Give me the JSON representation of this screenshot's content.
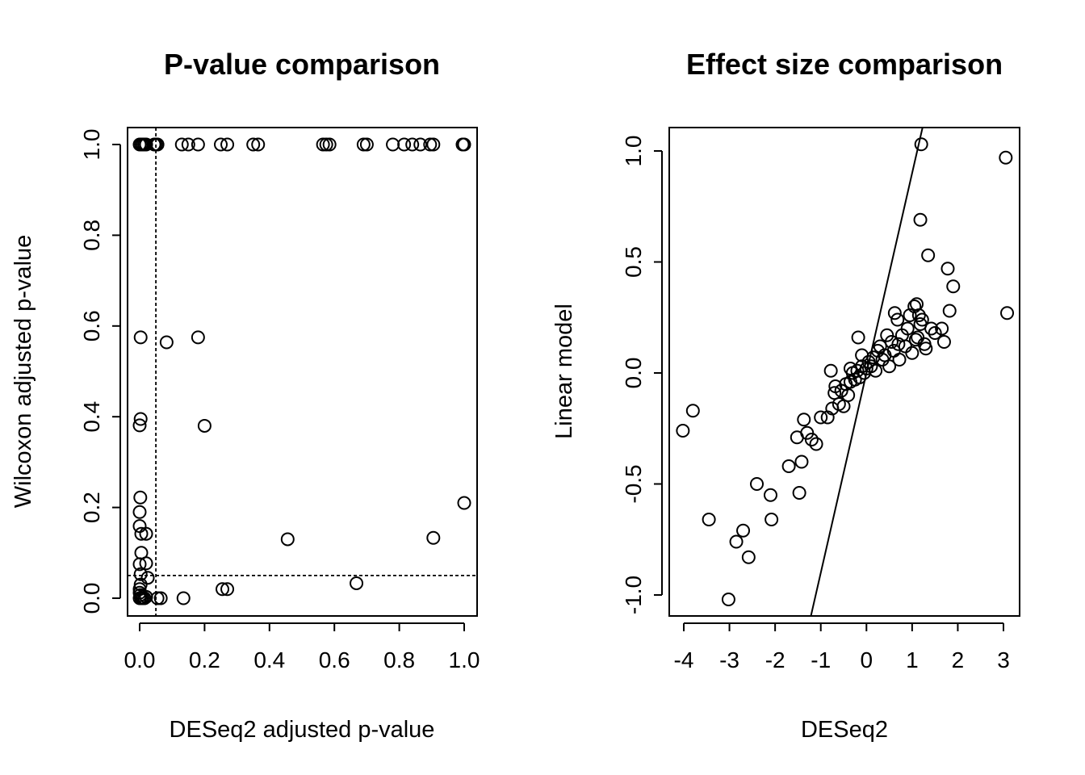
{
  "chart_data": [
    {
      "type": "scatter",
      "title": "P-value comparison",
      "xlabel": "DESeq2 adjusted p-value",
      "ylabel": "Wilcoxon adjusted p-value",
      "xlim": [
        0,
        1
      ],
      "ylim": [
        0,
        1
      ],
      "xticks": [
        0.0,
        0.2,
        0.4,
        0.6,
        0.8,
        1.0
      ],
      "yticks": [
        0.0,
        0.2,
        0.4,
        0.6,
        0.8,
        1.0
      ],
      "xtick_labels": [
        "0.0",
        "0.2",
        "0.4",
        "0.6",
        "0.8",
        "1.0"
      ],
      "ytick_labels": [
        "0.0",
        "0.2",
        "0.4",
        "0.6",
        "0.8",
        "1.0"
      ],
      "reference_lines": {
        "vertical_x": 0.05,
        "horizontal_y": 0.05,
        "style": "dashed"
      },
      "points": [
        [
          0.0,
          1.0
        ],
        [
          0.005,
          1.0
        ],
        [
          0.01,
          1.0
        ],
        [
          0.015,
          1.0
        ],
        [
          0.02,
          1.0
        ],
        [
          0.045,
          1.0
        ],
        [
          0.05,
          1.0
        ],
        [
          0.055,
          1.0
        ],
        [
          0.13,
          1.0
        ],
        [
          0.15,
          1.0
        ],
        [
          0.18,
          1.0
        ],
        [
          0.25,
          1.0
        ],
        [
          0.27,
          1.0
        ],
        [
          0.35,
          1.0
        ],
        [
          0.365,
          1.0
        ],
        [
          0.565,
          1.0
        ],
        [
          0.575,
          1.0
        ],
        [
          0.585,
          1.0
        ],
        [
          0.69,
          1.0
        ],
        [
          0.7,
          1.0
        ],
        [
          0.78,
          1.0
        ],
        [
          0.815,
          1.0
        ],
        [
          0.84,
          1.0
        ],
        [
          0.865,
          1.0
        ],
        [
          0.895,
          1.0
        ],
        [
          0.905,
          1.0
        ],
        [
          0.995,
          1.0
        ],
        [
          1.0,
          1.0
        ],
        [
          0.003,
          0.575
        ],
        [
          0.083,
          0.564
        ],
        [
          0.18,
          0.575
        ],
        [
          0.003,
          0.395
        ],
        [
          0.0,
          0.381
        ],
        [
          0.2,
          0.38
        ],
        [
          0.002,
          0.222
        ],
        [
          0.0,
          0.19
        ],
        [
          0.0,
          0.159
        ],
        [
          0.005,
          0.142
        ],
        [
          0.02,
          0.142
        ],
        [
          0.456,
          0.13
        ],
        [
          0.905,
          0.133
        ],
        [
          1.0,
          0.21
        ],
        [
          0.005,
          0.1
        ],
        [
          0.0,
          0.075
        ],
        [
          0.02,
          0.077
        ],
        [
          0.003,
          0.053
        ],
        [
          0.025,
          0.045
        ],
        [
          0.003,
          0.03
        ],
        [
          0.668,
          0.033
        ],
        [
          0.0,
          0.02
        ],
        [
          0.0,
          0.012
        ],
        [
          0.002,
          0.007
        ],
        [
          0.0,
          0.0
        ],
        [
          0.005,
          0.0
        ],
        [
          0.01,
          0.0
        ],
        [
          0.015,
          0.0
        ],
        [
          0.02,
          0.003
        ],
        [
          0.055,
          0.0
        ],
        [
          0.065,
          0.0
        ],
        [
          0.135,
          0.0
        ],
        [
          0.255,
          0.02
        ],
        [
          0.27,
          0.02
        ]
      ]
    },
    {
      "type": "scatter",
      "title": "Effect size comparison",
      "xlabel": "DESeq2",
      "ylabel": "Linear model",
      "xlim": [
        -4.3,
        3.4
      ],
      "ylim": [
        -1.1,
        1.1
      ],
      "xticks": [
        -4,
        -3,
        -2,
        -1,
        0,
        1,
        2,
        3
      ],
      "yticks": [
        -1.0,
        -0.5,
        0.0,
        0.5,
        1.0
      ],
      "xtick_labels": [
        "-4",
        "-3",
        "-2",
        "-1",
        "0",
        "1",
        "2",
        "3"
      ],
      "ytick_labels": [
        "-1.0",
        "-0.5",
        "0.0",
        "0.5",
        "1.0"
      ],
      "fit_line": {
        "intercept": 0.0,
        "slope": 0.9
      },
      "points": [
        [
          -4.02,
          -0.26
        ],
        [
          -3.8,
          -0.17
        ],
        [
          -3.45,
          -0.66
        ],
        [
          -3.02,
          -1.02
        ],
        [
          -2.85,
          -0.76
        ],
        [
          -2.7,
          -0.71
        ],
        [
          -2.58,
          -0.83
        ],
        [
          -2.4,
          -0.5
        ],
        [
          -2.1,
          -0.55
        ],
        [
          -2.08,
          -0.66
        ],
        [
          -1.7,
          -0.42
        ],
        [
          -1.52,
          -0.29
        ],
        [
          -1.47,
          -0.54
        ],
        [
          -1.42,
          -0.4
        ],
        [
          -1.37,
          -0.21
        ],
        [
          -1.3,
          -0.27
        ],
        [
          -1.2,
          -0.3
        ],
        [
          -1.1,
          -0.32
        ],
        [
          -1.0,
          -0.2
        ],
        [
          -0.85,
          -0.2
        ],
        [
          -0.75,
          -0.16
        ],
        [
          -0.7,
          -0.09
        ],
        [
          -0.6,
          -0.14
        ],
        [
          -0.5,
          -0.15
        ],
        [
          -0.78,
          0.01
        ],
        [
          -0.68,
          -0.06
        ],
        [
          -0.55,
          -0.08
        ],
        [
          -0.45,
          -0.05
        ],
        [
          -0.4,
          -0.1
        ],
        [
          -0.35,
          -0.04
        ],
        [
          -0.3,
          0.0
        ],
        [
          -0.25,
          -0.03
        ],
        [
          -0.2,
          0.01
        ],
        [
          -0.15,
          -0.02
        ],
        [
          -0.1,
          0.03
        ],
        [
          -0.05,
          0.0
        ],
        [
          0.0,
          0.02
        ],
        [
          0.05,
          0.05
        ],
        [
          0.1,
          0.03
        ],
        [
          0.15,
          0.07
        ],
        [
          -0.18,
          0.16
        ],
        [
          -0.1,
          0.08
        ],
        [
          -0.35,
          0.02
        ],
        [
          0.2,
          0.01
        ],
        [
          0.25,
          0.1
        ],
        [
          0.3,
          0.12
        ],
        [
          0.35,
          0.06
        ],
        [
          0.4,
          0.08
        ],
        [
          0.45,
          0.17
        ],
        [
          0.5,
          0.03
        ],
        [
          0.55,
          0.14
        ],
        [
          0.6,
          0.1
        ],
        [
          0.62,
          0.27
        ],
        [
          0.68,
          0.24
        ],
        [
          0.7,
          0.13
        ],
        [
          0.72,
          0.06
        ],
        [
          0.78,
          0.17
        ],
        [
          0.85,
          0.12
        ],
        [
          0.9,
          0.2
        ],
        [
          0.95,
          0.26
        ],
        [
          1.0,
          0.09
        ],
        [
          1.05,
          0.3
        ],
        [
          1.08,
          0.15
        ],
        [
          1.1,
          0.31
        ],
        [
          1.12,
          0.16
        ],
        [
          1.15,
          0.26
        ],
        [
          1.18,
          0.22
        ],
        [
          1.22,
          0.24
        ],
        [
          1.27,
          0.13
        ],
        [
          1.3,
          0.11
        ],
        [
          1.42,
          0.2
        ],
        [
          1.5,
          0.18
        ],
        [
          1.65,
          0.2
        ],
        [
          1.7,
          0.14
        ],
        [
          1.78,
          0.47
        ],
        [
          1.82,
          0.28
        ],
        [
          1.9,
          0.39
        ],
        [
          1.35,
          0.53
        ],
        [
          1.18,
          0.69
        ],
        [
          1.2,
          1.03
        ],
        [
          3.05,
          0.97
        ],
        [
          3.08,
          0.27
        ]
      ]
    }
  ]
}
